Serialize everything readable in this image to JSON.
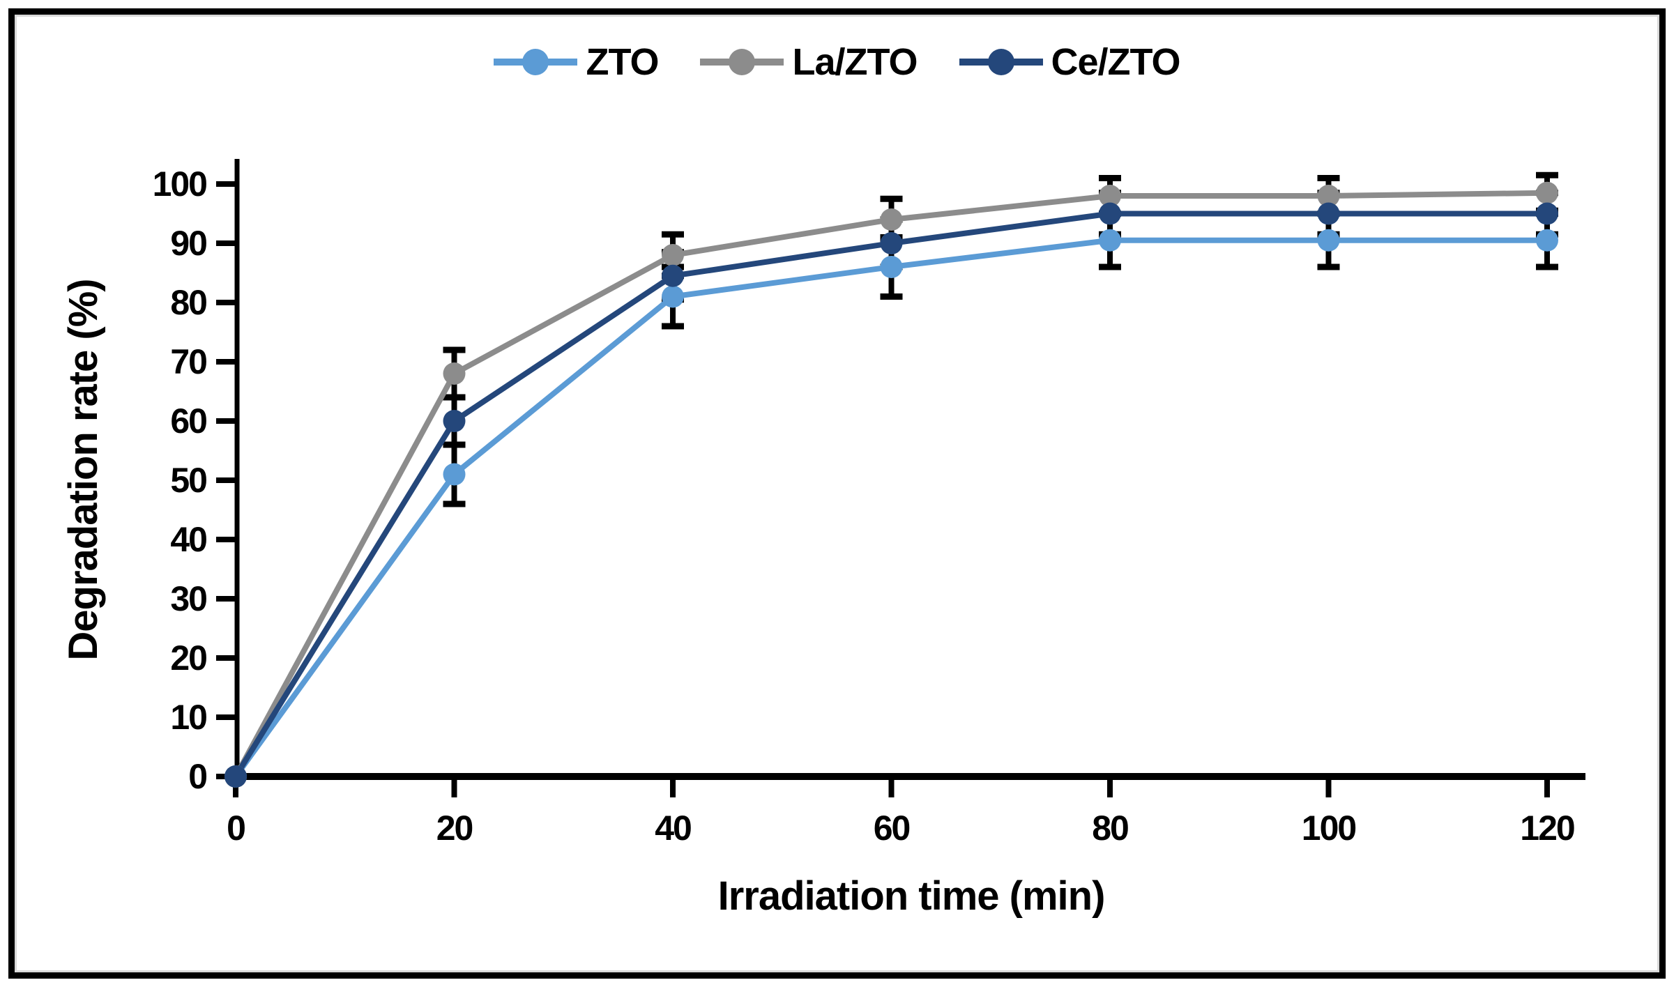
{
  "chart_data": {
    "type": "line",
    "title": "",
    "xlabel": "Irradiation time (min)",
    "ylabel": "Degradation rate (%)",
    "x": [
      0,
      20,
      40,
      60,
      80,
      100,
      120
    ],
    "x_tick_labels": [
      "0",
      "20",
      "40",
      "60",
      "80",
      "100",
      "120"
    ],
    "y_ticks": [
      0,
      10,
      20,
      30,
      40,
      50,
      60,
      70,
      80,
      90,
      100
    ],
    "xlim": [
      0,
      130
    ],
    "ylim": [
      0,
      100
    ],
    "grid": false,
    "legend_position": "top-center",
    "axis_color": "#000000",
    "error_bar_color": "#000000",
    "background_color": "#ffffff",
    "series": [
      {
        "name": "ZTO",
        "color": "#5b9bd5",
        "values": [
          0,
          51,
          81,
          86,
          90.5,
          90.5,
          90.5
        ],
        "errors": [
          0,
          5,
          5,
          5,
          4.5,
          4.5,
          4.5
        ]
      },
      {
        "name": "La/ZTO",
        "color": "#8c8c8c",
        "values": [
          0,
          68,
          88,
          94,
          98,
          98,
          98.5
        ],
        "errors": [
          0,
          4,
          3.5,
          3.5,
          3,
          3,
          3
        ]
      },
      {
        "name": "Ce/ZTO",
        "color": "#24477b",
        "values": [
          0,
          60,
          84.5,
          90,
          95,
          95,
          95
        ],
        "errors": [
          0,
          4,
          4,
          4,
          3.5,
          3.5,
          3.5
        ]
      }
    ]
  }
}
